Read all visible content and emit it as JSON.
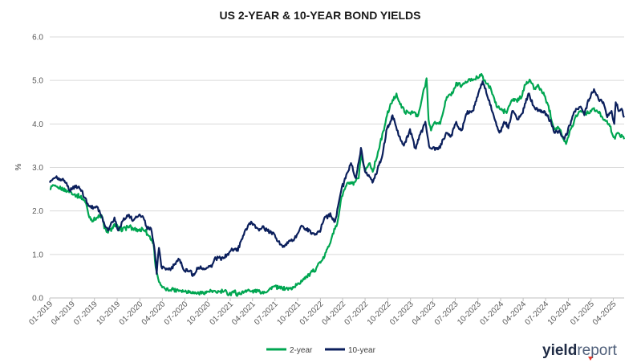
{
  "chart_data": {
    "type": "line",
    "title": "US 2-YEAR & 10-YEAR BOND YIELDS",
    "ylabel": "%",
    "xlabel": "",
    "ylim": [
      0,
      6
    ],
    "yticks": [
      "0.0",
      "1.0",
      "2.0",
      "3.0",
      "4.0",
      "5.0",
      "6.0"
    ],
    "xlim": [
      "2019-01-01",
      "2025-05-15"
    ],
    "xticks": [
      {
        "date": "2019-01-01",
        "label": "01-2019"
      },
      {
        "date": "2019-04-01",
        "label": "04-2019"
      },
      {
        "date": "2019-07-01",
        "label": "07-2019"
      },
      {
        "date": "2019-10-01",
        "label": "10-2019"
      },
      {
        "date": "2020-01-01",
        "label": "01-2020"
      },
      {
        "date": "2020-04-01",
        "label": "04-2020"
      },
      {
        "date": "2020-07-01",
        "label": "07-2020"
      },
      {
        "date": "2020-10-01",
        "label": "10-2020"
      },
      {
        "date": "2021-01-01",
        "label": "01-2021"
      },
      {
        "date": "2021-04-01",
        "label": "04-2021"
      },
      {
        "date": "2021-07-01",
        "label": "07-2021"
      },
      {
        "date": "2021-10-01",
        "label": "10-2021"
      },
      {
        "date": "2022-01-01",
        "label": "01-2022"
      },
      {
        "date": "2022-04-01",
        "label": "04-2022"
      },
      {
        "date": "2022-07-01",
        "label": "07-2022"
      },
      {
        "date": "2022-10-01",
        "label": "10-2022"
      },
      {
        "date": "2023-01-01",
        "label": "01-2023"
      },
      {
        "date": "2023-04-01",
        "label": "04-2023"
      },
      {
        "date": "2023-07-01",
        "label": "07-2023"
      },
      {
        "date": "2023-10-01",
        "label": "10-2023"
      },
      {
        "date": "2024-01-01",
        "label": "01-2024"
      },
      {
        "date": "2024-04-01",
        "label": "04-2024"
      },
      {
        "date": "2024-07-01",
        "label": "07-2024"
      },
      {
        "date": "2024-10-01",
        "label": "10-2024"
      },
      {
        "date": "2025-01-01",
        "label": "01-2025"
      },
      {
        "date": "2025-04-01",
        "label": "04-2025"
      }
    ],
    "grid": "horizontal",
    "legend_position": "bottom-center",
    "series": [
      {
        "name": "2-year",
        "color": "#00a651",
        "points": [
          [
            "2019-01-01",
            2.5
          ],
          [
            "2019-01-20",
            2.58
          ],
          [
            "2019-02-15",
            2.5
          ],
          [
            "2019-03-15",
            2.45
          ],
          [
            "2019-04-10",
            2.38
          ],
          [
            "2019-05-05",
            2.3
          ],
          [
            "2019-05-25",
            2.2
          ],
          [
            "2019-06-10",
            1.85
          ],
          [
            "2019-06-25",
            1.76
          ],
          [
            "2019-07-15",
            1.84
          ],
          [
            "2019-08-01",
            1.87
          ],
          [
            "2019-08-10",
            1.6
          ],
          [
            "2019-08-25",
            1.5
          ],
          [
            "2019-09-10",
            1.62
          ],
          [
            "2019-09-20",
            1.7
          ],
          [
            "2019-10-10",
            1.55
          ],
          [
            "2019-10-25",
            1.62
          ],
          [
            "2019-11-15",
            1.62
          ],
          [
            "2019-12-10",
            1.6
          ],
          [
            "2019-12-31",
            1.58
          ],
          [
            "2020-01-20",
            1.55
          ],
          [
            "2020-02-10",
            1.42
          ],
          [
            "2020-02-25",
            1.25
          ],
          [
            "2020-03-05",
            0.7
          ],
          [
            "2020-03-15",
            0.45
          ],
          [
            "2020-03-25",
            0.3
          ],
          [
            "2020-04-10",
            0.22
          ],
          [
            "2020-05-01",
            0.18
          ],
          [
            "2020-06-01",
            0.2
          ],
          [
            "2020-07-01",
            0.15
          ],
          [
            "2020-08-01",
            0.14
          ],
          [
            "2020-09-01",
            0.14
          ],
          [
            "2020-10-01",
            0.14
          ],
          [
            "2020-11-01",
            0.16
          ],
          [
            "2020-12-01",
            0.14
          ],
          [
            "2021-01-01",
            0.12
          ],
          [
            "2021-02-01",
            0.11
          ],
          [
            "2021-03-01",
            0.15
          ],
          [
            "2021-04-01",
            0.17
          ],
          [
            "2021-05-01",
            0.15
          ],
          [
            "2021-06-01",
            0.15
          ],
          [
            "2021-06-20",
            0.26
          ],
          [
            "2021-07-15",
            0.22
          ],
          [
            "2021-08-15",
            0.22
          ],
          [
            "2021-09-15",
            0.24
          ],
          [
            "2021-10-15",
            0.4
          ],
          [
            "2021-11-15",
            0.55
          ],
          [
            "2021-12-15",
            0.68
          ],
          [
            "2022-01-10",
            0.88
          ],
          [
            "2022-02-01",
            1.18
          ],
          [
            "2022-02-20",
            1.48
          ],
          [
            "2022-03-10",
            1.7
          ],
          [
            "2022-03-25",
            2.25
          ],
          [
            "2022-04-10",
            2.5
          ],
          [
            "2022-04-25",
            2.65
          ],
          [
            "2022-05-15",
            2.6
          ],
          [
            "2022-06-05",
            2.75
          ],
          [
            "2022-06-15",
            3.35
          ],
          [
            "2022-07-01",
            2.9
          ],
          [
            "2022-07-20",
            3.1
          ],
          [
            "2022-08-01",
            2.9
          ],
          [
            "2022-08-25",
            3.4
          ],
          [
            "2022-09-15",
            3.85
          ],
          [
            "2022-09-28",
            4.2
          ],
          [
            "2022-10-20",
            4.55
          ],
          [
            "2022-11-05",
            4.7
          ],
          [
            "2022-11-20",
            4.45
          ],
          [
            "2022-12-10",
            4.25
          ],
          [
            "2023-01-10",
            4.25
          ],
          [
            "2023-02-01",
            4.2
          ],
          [
            "2023-02-20",
            4.7
          ],
          [
            "2023-03-07",
            5.05
          ],
          [
            "2023-03-15",
            4.1
          ],
          [
            "2023-03-25",
            3.85
          ],
          [
            "2023-04-10",
            4.05
          ],
          [
            "2023-05-01",
            4.0
          ],
          [
            "2023-05-25",
            4.55
          ],
          [
            "2023-06-20",
            4.7
          ],
          [
            "2023-07-05",
            4.95
          ],
          [
            "2023-07-25",
            4.85
          ],
          [
            "2023-08-15",
            4.95
          ],
          [
            "2023-09-10",
            5.0
          ],
          [
            "2023-09-25",
            5.1
          ],
          [
            "2023-10-15",
            5.15
          ],
          [
            "2023-11-01",
            4.95
          ],
          [
            "2023-11-25",
            4.75
          ],
          [
            "2023-12-15",
            4.4
          ],
          [
            "2024-01-05",
            4.35
          ],
          [
            "2024-01-25",
            4.25
          ],
          [
            "2024-02-15",
            4.55
          ],
          [
            "2024-03-05",
            4.55
          ],
          [
            "2024-03-25",
            4.6
          ],
          [
            "2024-04-10",
            4.9
          ],
          [
            "2024-04-30",
            5.0
          ],
          [
            "2024-05-15",
            4.8
          ],
          [
            "2024-06-01",
            4.9
          ],
          [
            "2024-06-20",
            4.7
          ],
          [
            "2024-07-10",
            4.45
          ],
          [
            "2024-08-05",
            3.9
          ],
          [
            "2024-08-25",
            3.9
          ],
          [
            "2024-09-15",
            3.6
          ],
          [
            "2024-09-25",
            3.6
          ],
          [
            "2024-10-15",
            3.95
          ],
          [
            "2024-11-01",
            4.2
          ],
          [
            "2024-11-20",
            4.3
          ],
          [
            "2024-12-15",
            4.25
          ],
          [
            "2025-01-10",
            4.35
          ],
          [
            "2025-02-01",
            4.25
          ],
          [
            "2025-02-25",
            4.1
          ],
          [
            "2025-03-15",
            4.0
          ],
          [
            "2025-04-05",
            3.7
          ],
          [
            "2025-04-20",
            3.8
          ],
          [
            "2025-05-05",
            3.75
          ],
          [
            "2025-05-15",
            3.65
          ]
        ]
      },
      {
        "name": "10-year",
        "color": "#0b1f5c",
        "points": [
          [
            "2019-01-01",
            2.65
          ],
          [
            "2019-01-20",
            2.75
          ],
          [
            "2019-02-15",
            2.7
          ],
          [
            "2019-03-10",
            2.65
          ],
          [
            "2019-03-25",
            2.45
          ],
          [
            "2019-04-15",
            2.55
          ],
          [
            "2019-05-05",
            2.5
          ],
          [
            "2019-05-25",
            2.3
          ],
          [
            "2019-06-10",
            2.12
          ],
          [
            "2019-06-25",
            2.05
          ],
          [
            "2019-07-15",
            2.08
          ],
          [
            "2019-08-05",
            1.75
          ],
          [
            "2019-08-25",
            1.55
          ],
          [
            "2019-09-10",
            1.75
          ],
          [
            "2019-09-20",
            1.85
          ],
          [
            "2019-10-05",
            1.55
          ],
          [
            "2019-10-25",
            1.78
          ],
          [
            "2019-11-10",
            1.9
          ],
          [
            "2019-12-05",
            1.78
          ],
          [
            "2019-12-31",
            1.92
          ],
          [
            "2020-01-15",
            1.85
          ],
          [
            "2020-01-31",
            1.58
          ],
          [
            "2020-02-15",
            1.6
          ],
          [
            "2020-02-28",
            1.18
          ],
          [
            "2020-03-09",
            0.55
          ],
          [
            "2020-03-18",
            1.15
          ],
          [
            "2020-03-28",
            0.72
          ],
          [
            "2020-04-15",
            0.65
          ],
          [
            "2020-05-01",
            0.68
          ],
          [
            "2020-06-08",
            0.88
          ],
          [
            "2020-06-25",
            0.66
          ],
          [
            "2020-07-15",
            0.62
          ],
          [
            "2020-08-05",
            0.55
          ],
          [
            "2020-08-25",
            0.7
          ],
          [
            "2020-09-15",
            0.68
          ],
          [
            "2020-10-15",
            0.75
          ],
          [
            "2020-11-10",
            0.95
          ],
          [
            "2020-12-10",
            0.92
          ],
          [
            "2021-01-10",
            1.1
          ],
          [
            "2021-02-01",
            1.08
          ],
          [
            "2021-02-25",
            1.45
          ],
          [
            "2021-03-20",
            1.72
          ],
          [
            "2021-04-05",
            1.7
          ],
          [
            "2021-04-25",
            1.58
          ],
          [
            "2021-05-15",
            1.65
          ],
          [
            "2021-06-10",
            1.5
          ],
          [
            "2021-06-25",
            1.5
          ],
          [
            "2021-07-15",
            1.3
          ],
          [
            "2021-08-05",
            1.2
          ],
          [
            "2021-08-25",
            1.3
          ],
          [
            "2021-09-15",
            1.32
          ],
          [
            "2021-10-01",
            1.48
          ],
          [
            "2021-10-20",
            1.65
          ],
          [
            "2021-11-15",
            1.58
          ],
          [
            "2021-12-10",
            1.45
          ],
          [
            "2021-12-31",
            1.52
          ],
          [
            "2022-01-15",
            1.8
          ],
          [
            "2022-02-10",
            1.95
          ],
          [
            "2022-03-01",
            1.75
          ],
          [
            "2022-03-20",
            2.3
          ],
          [
            "2022-04-10",
            2.75
          ],
          [
            "2022-05-05",
            3.1
          ],
          [
            "2022-05-25",
            2.75
          ],
          [
            "2022-06-14",
            3.45
          ],
          [
            "2022-07-01",
            2.9
          ],
          [
            "2022-07-31",
            2.65
          ],
          [
            "2022-08-20",
            2.95
          ],
          [
            "2022-09-10",
            3.3
          ],
          [
            "2022-09-28",
            3.9
          ],
          [
            "2022-10-20",
            4.2
          ],
          [
            "2022-11-10",
            3.85
          ],
          [
            "2022-12-05",
            3.5
          ],
          [
            "2022-12-30",
            3.88
          ],
          [
            "2023-01-20",
            3.45
          ],
          [
            "2023-02-20",
            3.9
          ],
          [
            "2023-03-02",
            4.05
          ],
          [
            "2023-03-20",
            3.45
          ],
          [
            "2023-04-10",
            3.4
          ],
          [
            "2023-05-01",
            3.45
          ],
          [
            "2023-05-25",
            3.8
          ],
          [
            "2023-06-15",
            3.75
          ],
          [
            "2023-07-05",
            4.05
          ],
          [
            "2023-07-25",
            3.85
          ],
          [
            "2023-08-20",
            4.3
          ],
          [
            "2023-09-10",
            4.3
          ],
          [
            "2023-10-05",
            4.75
          ],
          [
            "2023-10-20",
            4.98
          ],
          [
            "2023-11-10",
            4.6
          ],
          [
            "2023-12-01",
            4.25
          ],
          [
            "2023-12-27",
            3.8
          ],
          [
            "2024-01-15",
            4.05
          ],
          [
            "2024-02-01",
            3.9
          ],
          [
            "2024-02-20",
            4.3
          ],
          [
            "2024-03-10",
            4.1
          ],
          [
            "2024-03-25",
            4.22
          ],
          [
            "2024-04-25",
            4.7
          ],
          [
            "2024-05-15",
            4.4
          ],
          [
            "2024-06-05",
            4.3
          ],
          [
            "2024-06-25",
            4.3
          ],
          [
            "2024-07-10",
            4.2
          ],
          [
            "2024-08-05",
            3.8
          ],
          [
            "2024-08-25",
            3.85
          ],
          [
            "2024-09-15",
            3.65
          ],
          [
            "2024-09-25",
            3.75
          ],
          [
            "2024-10-15",
            4.1
          ],
          [
            "2024-11-01",
            4.35
          ],
          [
            "2024-11-20",
            4.4
          ],
          [
            "2024-12-05",
            4.2
          ],
          [
            "2024-12-20",
            4.55
          ],
          [
            "2025-01-13",
            4.8
          ],
          [
            "2025-02-01",
            4.55
          ],
          [
            "2025-02-20",
            4.5
          ],
          [
            "2025-03-05",
            4.2
          ],
          [
            "2025-03-25",
            4.3
          ],
          [
            "2025-04-05",
            4.0
          ],
          [
            "2025-04-11",
            4.5
          ],
          [
            "2025-04-25",
            4.3
          ],
          [
            "2025-05-05",
            4.35
          ],
          [
            "2025-05-15",
            4.15
          ]
        ]
      }
    ]
  },
  "brand": {
    "logo_bold": "yield",
    "logo_light": "report",
    "accent_color": "#e63a2e"
  }
}
